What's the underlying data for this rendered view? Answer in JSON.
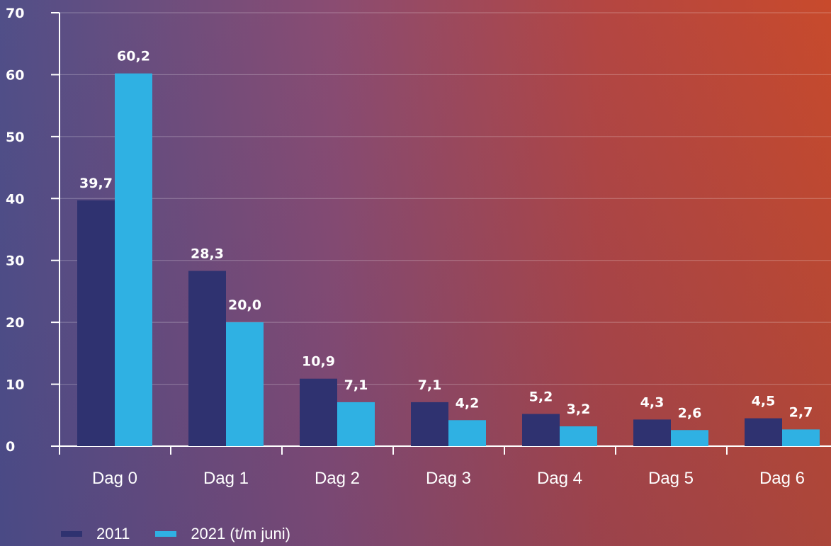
{
  "chart_data": {
    "type": "bar",
    "title": "",
    "xlabel": "",
    "ylabel": "",
    "categories": [
      "Dag 0",
      "Dag 1",
      "Dag 2",
      "Dag 3",
      "Dag 4",
      "Dag 5",
      "Dag 6"
    ],
    "series": [
      {
        "name": "2011",
        "color": "#2f3270",
        "values": [
          39.7,
          28.3,
          10.9,
          7.1,
          5.2,
          4.3,
          4.5
        ],
        "labels": [
          "39,7",
          "28,3",
          "10,9",
          "7,1",
          "5,2",
          "4,3",
          "4,5"
        ]
      },
      {
        "name": "2021 (t/m juni)",
        "color": "#2fb1e3",
        "values": [
          60.2,
          20.0,
          7.1,
          4.2,
          3.2,
          2.6,
          2.7
        ],
        "labels": [
          "60,2",
          "20,0",
          "7,1",
          "4,2",
          "3,2",
          "2,6",
          "2,7"
        ]
      }
    ],
    "ylim": [
      0,
      70
    ],
    "yticks": [
      0,
      10,
      20,
      30,
      40,
      50,
      60,
      70
    ],
    "ytick_labels": [
      "0",
      "10",
      "20",
      "30",
      "40",
      "50",
      "60",
      "70"
    ],
    "grid": true,
    "legend_position": "bottom-left"
  },
  "colors": {
    "background_left": "#514f88",
    "background_right": "#c84a2c",
    "axis": "#ffffff",
    "text": "#ffffff"
  }
}
